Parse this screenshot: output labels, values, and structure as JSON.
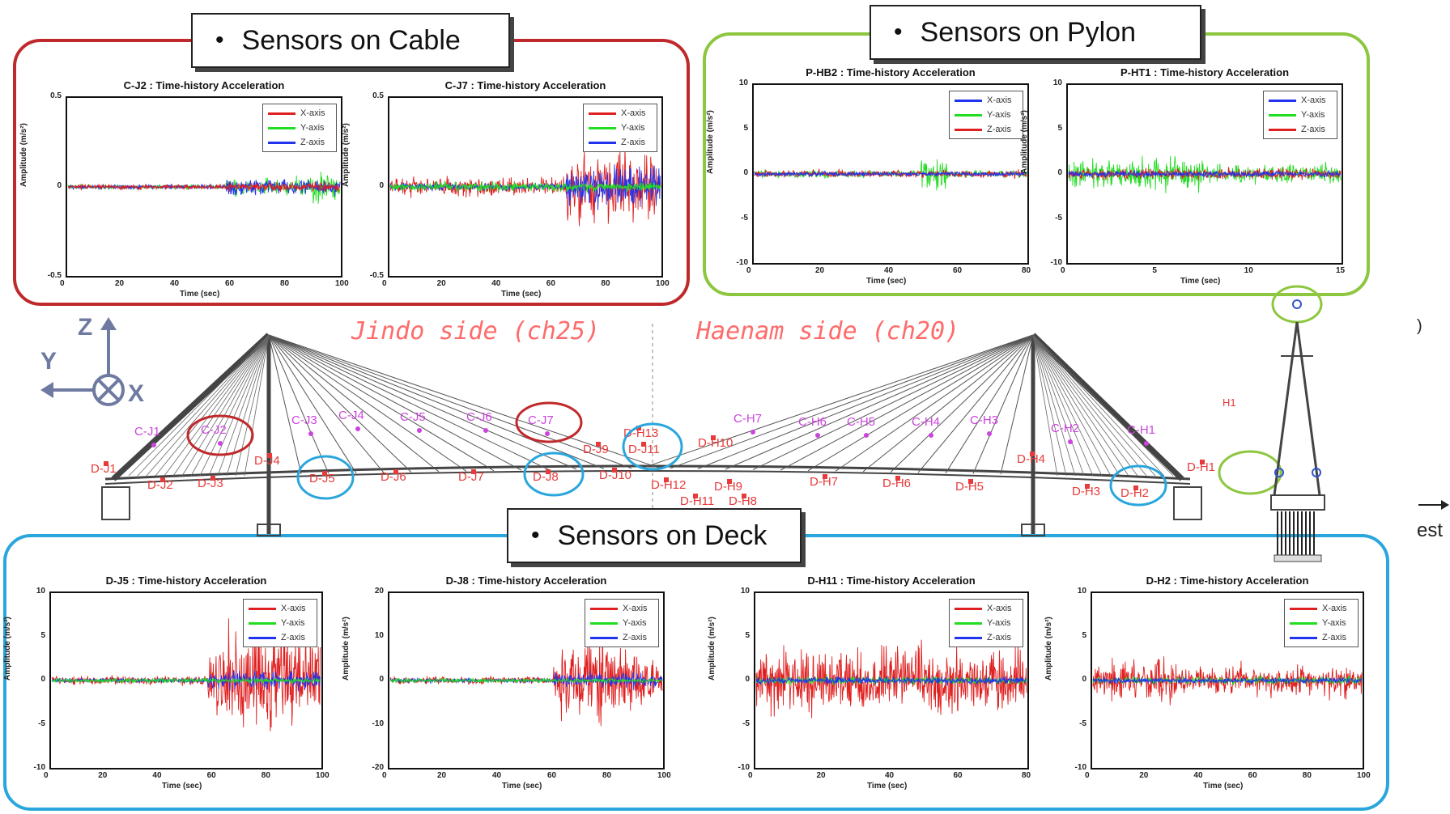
{
  "groups": {
    "cable": {
      "label": "Sensors on Cable",
      "color": "#c0292b"
    },
    "pylon": {
      "label": "Sensors on Pylon",
      "color": "#8dc63f"
    },
    "deck": {
      "label": "Sensors on Deck",
      "color": "#2aa6dc"
    }
  },
  "bullet": "•",
  "bridge": {
    "jindo_label": "Jindo side (ch25)",
    "haenam_label": "Haenam side (ch20)",
    "axes": {
      "z": "Z",
      "y": "Y",
      "x": "X"
    },
    "colors": {
      "cable_sensor": "#cc44dd",
      "deck_sensor": "#e83a3a",
      "pylon_sensor": "#3355cc",
      "structure": "#444444"
    },
    "cable_sensors": [
      "C-J1",
      "C-J2",
      "C-J3",
      "C-J4",
      "C-J5",
      "C-J6",
      "C-J7",
      "C-H7",
      "C-H6",
      "C-H5",
      "C-H4",
      "C-H3",
      "C-H2",
      "C-H1"
    ],
    "deck_sensors_jindo": [
      "D-J1",
      "D-J2",
      "D-J3",
      "D-J4",
      "D-J5",
      "D-J6",
      "D-J7",
      "D-J8",
      "D-J9",
      "D-J10",
      "D-J11"
    ],
    "deck_sensors_haenam": [
      "D-H13",
      "D-H12",
      "D-H11",
      "D-H10",
      "D-H9",
      "D-H8",
      "D-H7",
      "D-H6",
      "D-H5",
      "D-H4",
      "D-H3",
      "D-H2",
      "D-H1"
    ],
    "pylon_note": "H1",
    "far_right_text": "est",
    "far_right_paren": ")"
  },
  "plots": {
    "cable1": {
      "title": "C-J2 : Time-history Acceleration",
      "legend": [
        "X-axis",
        "Y-axis",
        "Z-axis"
      ],
      "legend_colors": [
        "#e02020",
        "#22dd22",
        "#2233ee"
      ],
      "y_ticks": [
        "0.5",
        "0",
        "-0.5"
      ],
      "x_ticks": [
        "0",
        "20",
        "40",
        "60",
        "80",
        "100"
      ],
      "ylabel": "Amplitude (m/s²)",
      "xlabel": "Time (sec)"
    },
    "cable2": {
      "title": "C-J7 : Time-history Acceleration",
      "legend": [
        "X-axis",
        "Y-axis",
        "Z-axis"
      ],
      "legend_colors": [
        "#e02020",
        "#22dd22",
        "#2233ee"
      ],
      "y_ticks": [
        "0.5",
        "0",
        "-0.5"
      ],
      "x_ticks": [
        "0",
        "20",
        "40",
        "60",
        "80",
        "100"
      ],
      "ylabel": "Amplitude (m/s²)",
      "xlabel": "Time (sec)"
    },
    "pylon1": {
      "title": "P-HB2 : Time-history Acceleration",
      "legend": [
        "X-axis",
        "Y-axis",
        "Z-axis"
      ],
      "legend_colors": [
        "#2233ee",
        "#22dd22",
        "#e02020"
      ],
      "y_ticks": [
        "10",
        "5",
        "0",
        "-5",
        "-10"
      ],
      "x_ticks": [
        "0",
        "20",
        "40",
        "60",
        "80"
      ],
      "ylabel": "Amplitude (m/s²)",
      "xlabel": "Time (sec)"
    },
    "pylon2": {
      "title": "P-HT1 : Time-history Acceleration",
      "legend": [
        "X-axis",
        "Y-axis",
        "Z-axis"
      ],
      "legend_colors": [
        "#2233ee",
        "#22dd22",
        "#e02020"
      ],
      "y_ticks": [
        "10",
        "5",
        "0",
        "-5",
        "-10"
      ],
      "x_ticks": [
        "0",
        "5",
        "10",
        "15"
      ],
      "ylabel": "Amplitude (m/s²)",
      "xlabel": "Time (sec)"
    },
    "deck1": {
      "title": "D-J5 : Time-history Acceleration",
      "legend": [
        "X-axis",
        "Y-axis",
        "Z-axis"
      ],
      "legend_colors": [
        "#e02020",
        "#22dd22",
        "#2233ee"
      ],
      "y_ticks": [
        "10",
        "5",
        "0",
        "-5",
        "-10"
      ],
      "x_ticks": [
        "0",
        "20",
        "40",
        "60",
        "80",
        "100"
      ],
      "ylabel": "Amplitude (m/s²)",
      "xlabel": "Time (sec)"
    },
    "deck2": {
      "title": "D-J8 : Time-history Acceleration",
      "legend": [
        "X-axis",
        "Y-axis",
        "Z-axis"
      ],
      "legend_colors": [
        "#e02020",
        "#22dd22",
        "#2233ee"
      ],
      "y_ticks": [
        "20",
        "10",
        "0",
        "-10",
        "-20"
      ],
      "x_ticks": [
        "0",
        "20",
        "40",
        "60",
        "80",
        "100"
      ],
      "ylabel": "Amplitude (m/s²)",
      "xlabel": "Time (sec)"
    },
    "deck3": {
      "title": "D-H11 : Time-history Acceleration",
      "legend": [
        "X-axis",
        "Y-axis",
        "Z-axis"
      ],
      "legend_colors": [
        "#e02020",
        "#22dd22",
        "#2233ee"
      ],
      "y_ticks": [
        "10",
        "5",
        "0",
        "-5",
        "-10"
      ],
      "x_ticks": [
        "0",
        "20",
        "40",
        "60",
        "80"
      ],
      "ylabel": "Amplitude (m/s²)",
      "xlabel": "Time (sec)"
    },
    "deck4": {
      "title": "D-H2 : Time-history Acceleration",
      "legend": [
        "X-axis",
        "Y-axis",
        "Z-axis"
      ],
      "legend_colors": [
        "#e02020",
        "#22dd22",
        "#2233ee"
      ],
      "y_ticks": [
        "10",
        "5",
        "0",
        "-5",
        "-10"
      ],
      "x_ticks": [
        "0",
        "20",
        "40",
        "60",
        "80",
        "100"
      ],
      "ylabel": "Amplitude (m/s²)",
      "xlabel": "Time (sec)"
    }
  }
}
